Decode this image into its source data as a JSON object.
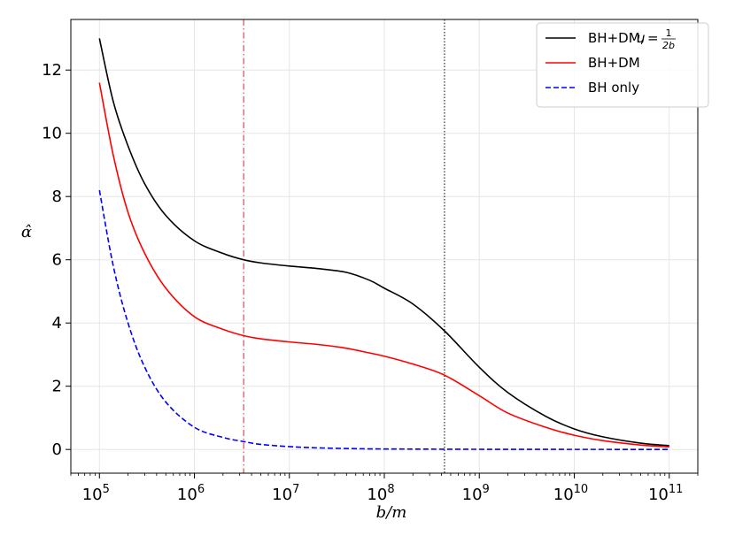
{
  "chart_data": {
    "type": "line",
    "xlabel": "b/m",
    "ylabel": "α̂",
    "xscale": "log",
    "xlim": [
      50000,
      200000000000
    ],
    "ylim": [
      -0.75,
      13.6
    ],
    "x_tick_labels": [
      {
        "base": "10",
        "exp": "5",
        "value": 100000
      },
      {
        "base": "10",
        "exp": "6",
        "value": 1000000
      },
      {
        "base": "10",
        "exp": "7",
        "value": 10000000
      },
      {
        "base": "10",
        "exp": "8",
        "value": 100000000
      },
      {
        "base": "10",
        "exp": "9",
        "value": 1000000000
      },
      {
        "base": "10",
        "exp": "10",
        "value": 10000000000
      },
      {
        "base": "10",
        "exp": "11",
        "value": 100000000000
      }
    ],
    "y_tick_labels": [
      {
        "label": "0",
        "value": 0
      },
      {
        "label": "2",
        "value": 2
      },
      {
        "label": "4",
        "value": 4
      },
      {
        "label": "6",
        "value": 6
      },
      {
        "label": "8",
        "value": 8
      },
      {
        "label": "10",
        "value": 10
      },
      {
        "label": "12",
        "value": 12
      }
    ],
    "grid": true,
    "legend_position": "top-right",
    "vlines": [
      {
        "x": 3300000,
        "color": "#d62728",
        "style": "dashdot"
      },
      {
        "x": 430000000,
        "color": "#000000",
        "style": "dotted"
      }
    ],
    "series": [
      {
        "name": "BH+DM,",
        "name_math": "u = 1/(2b)",
        "color": "#000000",
        "style": "solid",
        "x": [
          100000,
          140000,
          200000,
          300000,
          500000,
          1000000,
          2000000,
          3300000,
          5000000,
          10000000,
          20000000,
          40000000,
          70000000,
          100000000,
          200000000,
          430000000,
          1000000000,
          2000000000,
          5000000000,
          10000000000,
          20000000000,
          50000000000,
          100000000000
        ],
        "y": [
          13.0,
          11.0,
          9.6,
          8.4,
          7.4,
          6.6,
          6.2,
          6.0,
          5.9,
          5.8,
          5.72,
          5.6,
          5.35,
          5.1,
          4.6,
          3.75,
          2.6,
          1.8,
          1.05,
          0.65,
          0.4,
          0.2,
          0.12
        ]
      },
      {
        "name": "BH+DM",
        "color": "#ff0000",
        "style": "solid",
        "x": [
          100000,
          140000,
          200000,
          300000,
          500000,
          1000000,
          2000000,
          3300000,
          5000000,
          10000000,
          20000000,
          40000000,
          70000000,
          100000000,
          200000000,
          430000000,
          1000000000,
          2000000000,
          5000000000,
          10000000000,
          20000000000,
          50000000000,
          100000000000
        ],
        "y": [
          11.6,
          9.3,
          7.5,
          6.2,
          5.1,
          4.2,
          3.8,
          3.6,
          3.5,
          3.4,
          3.32,
          3.2,
          3.05,
          2.95,
          2.7,
          2.35,
          1.7,
          1.15,
          0.7,
          0.45,
          0.28,
          0.14,
          0.08
        ]
      },
      {
        "name": "BH only",
        "color": "#0000ff",
        "style": "dashed",
        "x": [
          100000,
          140000,
          200000,
          300000,
          500000,
          1000000,
          2000000,
          3300000,
          5000000,
          10000000,
          20000000,
          50000000,
          100000000,
          1000000000,
          10000000000,
          100000000000
        ],
        "y": [
          8.2,
          5.8,
          4.0,
          2.6,
          1.5,
          0.7,
          0.38,
          0.25,
          0.16,
          0.09,
          0.05,
          0.025,
          0.015,
          0.005,
          0.002,
          0.001
        ]
      }
    ]
  }
}
